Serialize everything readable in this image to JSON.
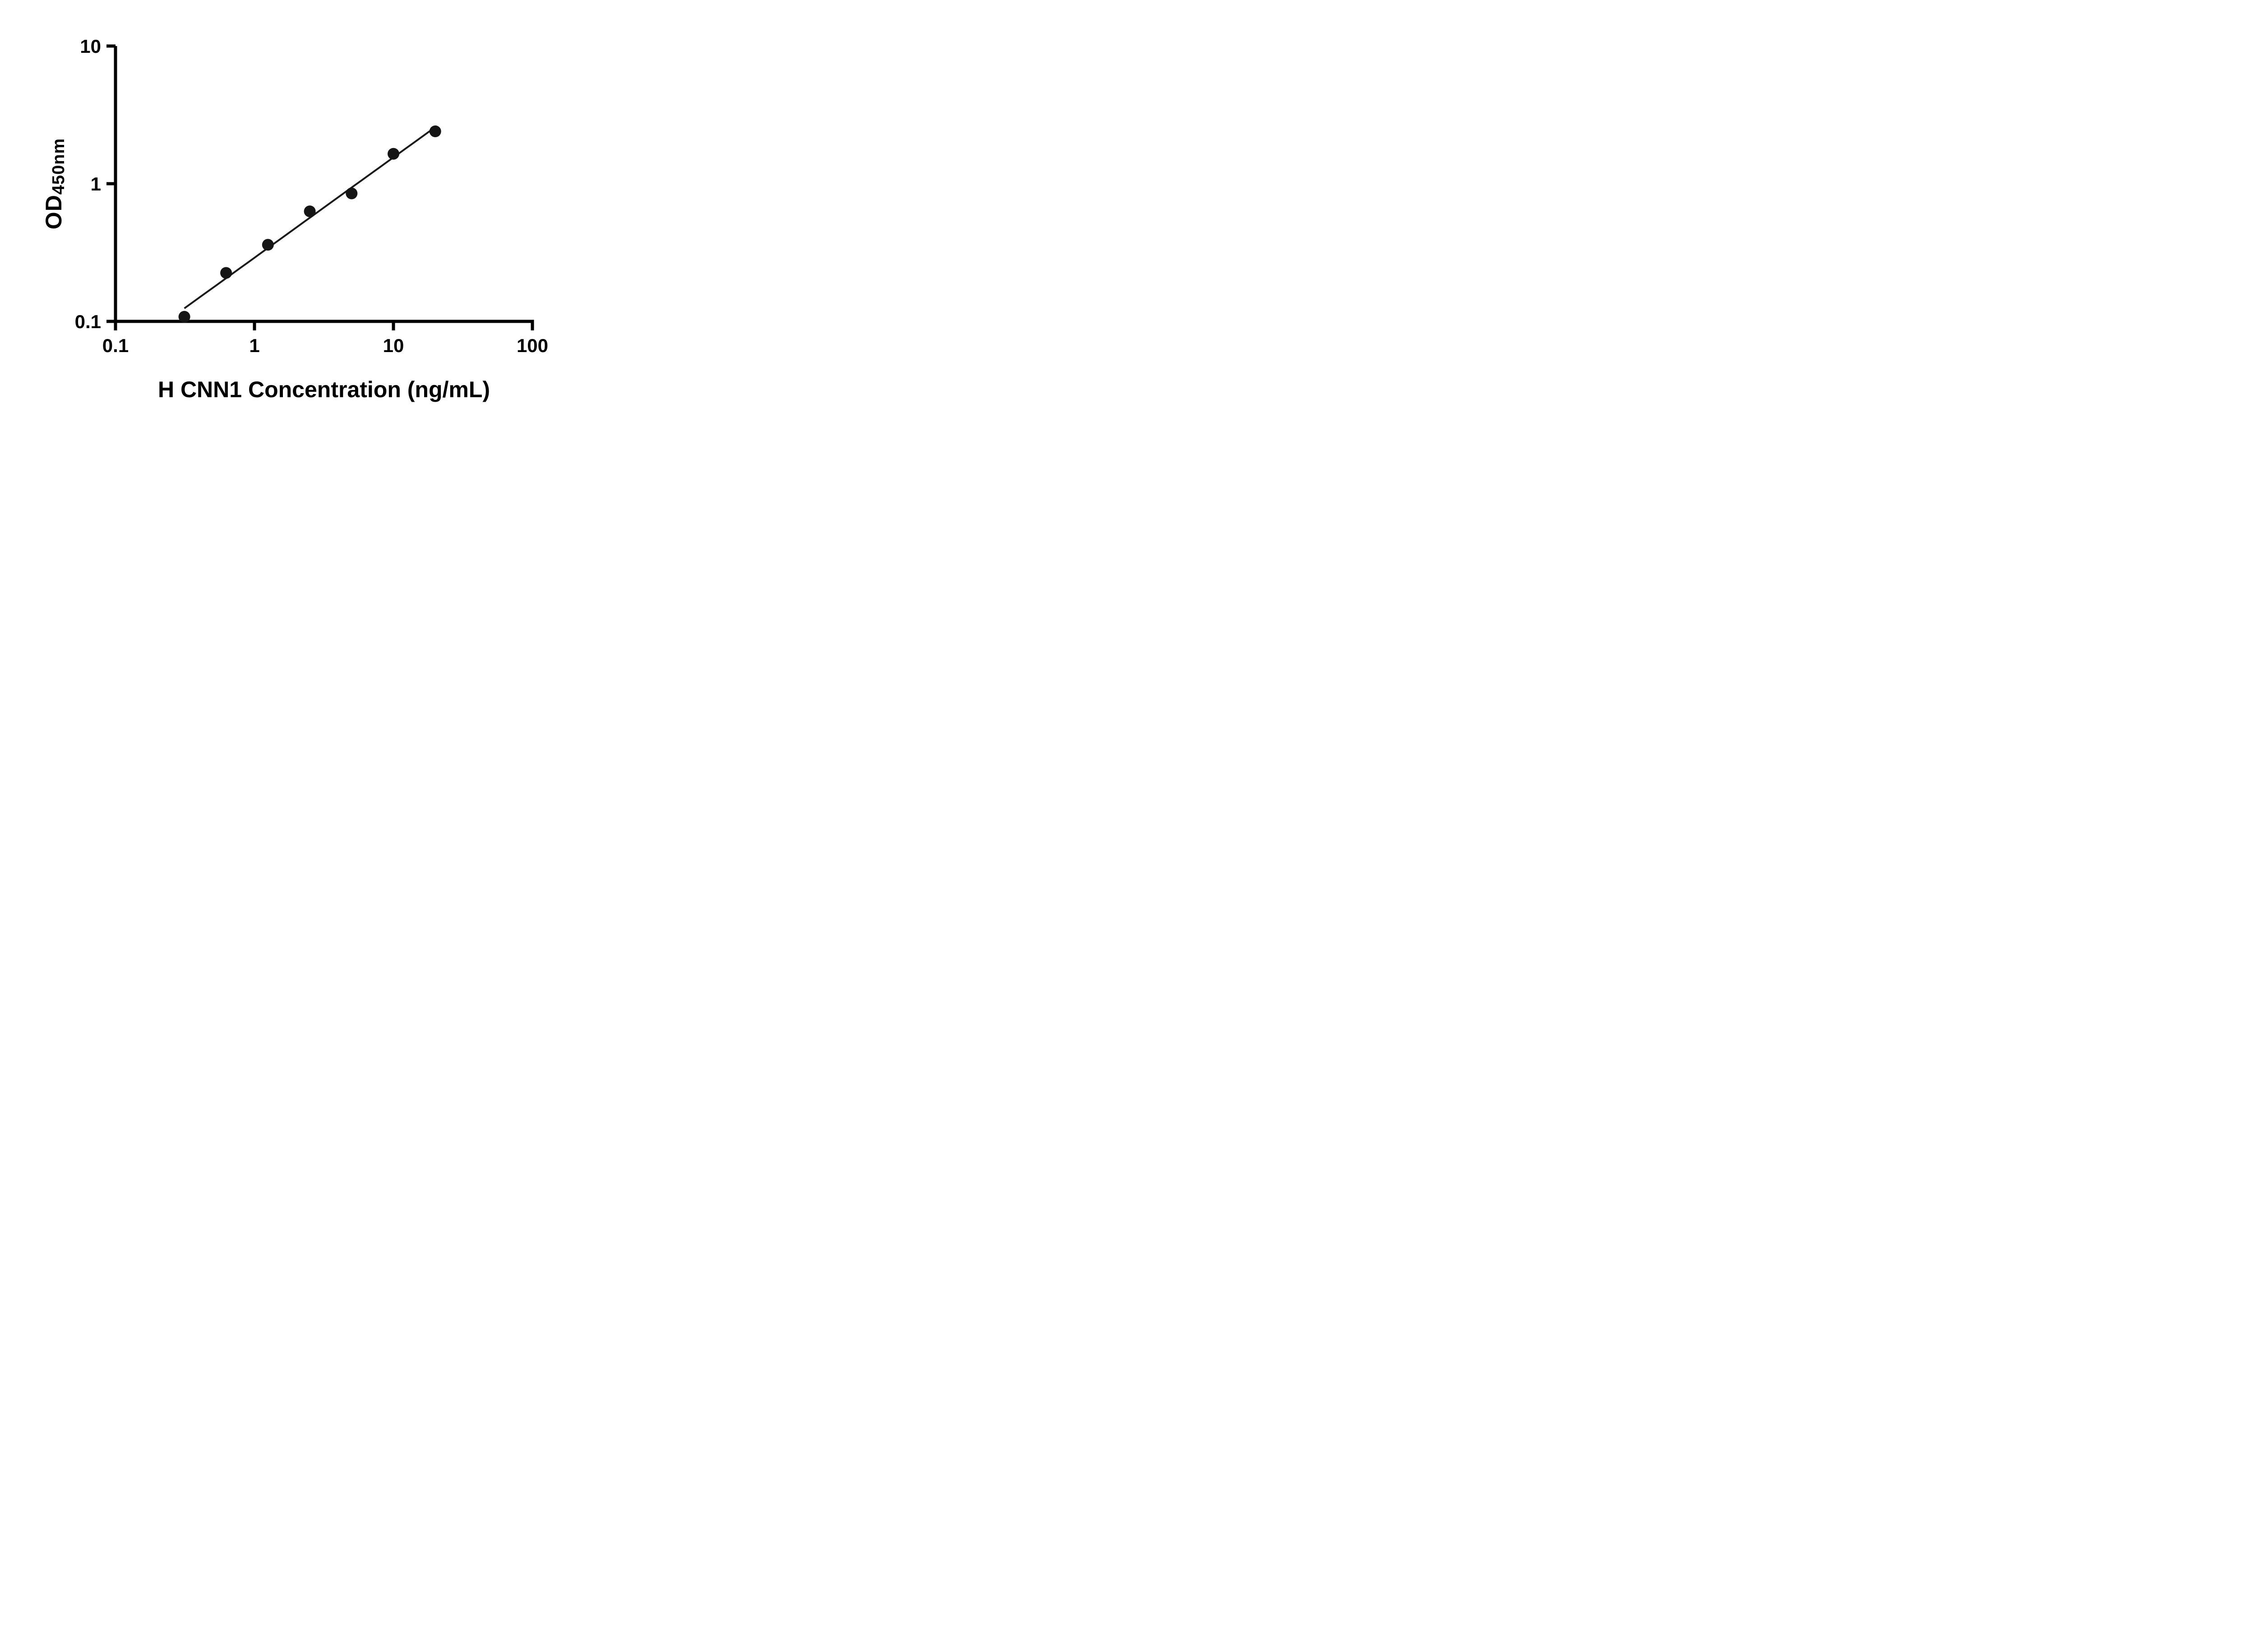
{
  "chart_data": {
    "type": "scatter",
    "title": "",
    "xlabel": "H CNN1 Concentration (ng/mL)",
    "ylabel_main": "OD",
    "ylabel_sub": "450nm",
    "x_scale": "log",
    "y_scale": "log",
    "xlim": [
      0.1,
      100
    ],
    "ylim": [
      0.1,
      10
    ],
    "x_ticks": [
      0.1,
      1,
      10,
      100
    ],
    "x_tick_labels": [
      "0.1",
      "1",
      "10",
      "100"
    ],
    "y_ticks": [
      0.1,
      1,
      10
    ],
    "y_tick_labels": [
      "0.1",
      "1",
      "10"
    ],
    "grid": false,
    "legend": "none",
    "points": [
      {
        "x": 0.313,
        "y": 0.108
      },
      {
        "x": 0.625,
        "y": 0.225
      },
      {
        "x": 1.25,
        "y": 0.36
      },
      {
        "x": 2.5,
        "y": 0.63
      },
      {
        "x": 5,
        "y": 0.85
      },
      {
        "x": 10,
        "y": 1.65
      },
      {
        "x": 20,
        "y": 2.4
      }
    ],
    "trendline": {
      "type": "power",
      "coefficient": 0.29,
      "exponent": 0.729,
      "x_start": 0.313,
      "x_end": 20.5
    },
    "colors": {
      "marker": "#151515",
      "line": "#1a1a1a",
      "axis": "#000000"
    }
  }
}
